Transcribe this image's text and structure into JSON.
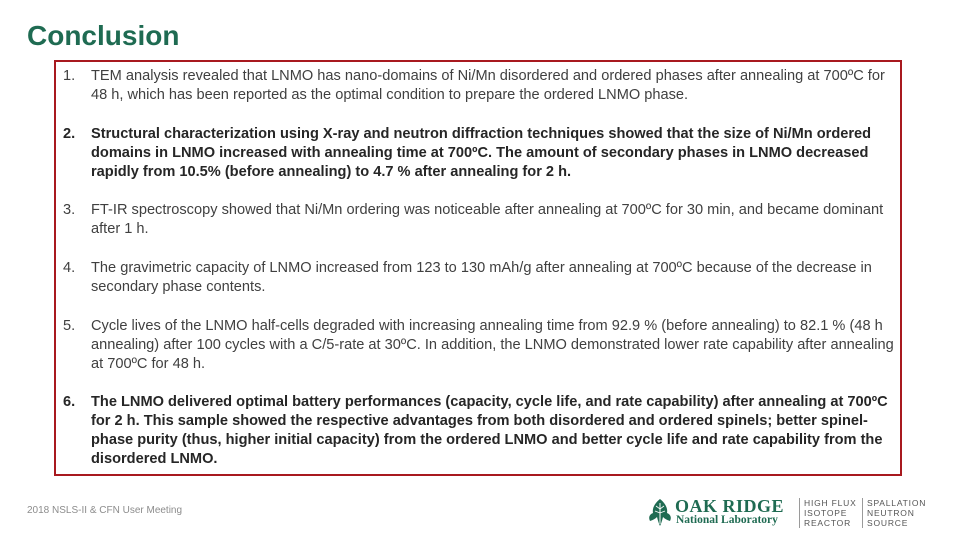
{
  "slide": {
    "title": "Conclusion",
    "footer": "2018 NSLS-II & CFN User Meeting"
  },
  "items": [
    {
      "num": "1.",
      "text": "TEM analysis revealed that LNMO has nano-domains of Ni/Mn disordered and ordered phases after annealing at 700ºC for 48 h, which has been reported as the optimal condition to prepare the ordered LNMO phase.",
      "bold": false
    },
    {
      "num": "2.",
      "text": "Structural characterization using X-ray and neutron diffraction techniques showed that the size of Ni/Mn ordered domains in LNMO increased with annealing time at 700ºC. The amount of secondary phases in LNMO decreased rapidly from 10.5% (before annealing) to 4.7 % after annealing for 2 h.",
      "bold": true
    },
    {
      "num": "3.",
      "text": "FT-IR spectroscopy showed that Ni/Mn ordering was noticeable after annealing at 700ºC for 30 min, and became dominant after 1 h.",
      "bold": false
    },
    {
      "num": "4.",
      "text": "The gravimetric capacity of LNMO increased from 123 to 130 mAh/g after annealing at 700ºC because of the decrease in secondary phase contents.",
      "bold": false
    },
    {
      "num": "5.",
      "text": "Cycle lives of the LNMO half-cells degraded with increasing annealing time from 92.9 % (before annealing) to 82.1 % (48 h annealing) after 100 cycles with a C/5-rate at 30ºC. In addition, the LNMO demonstrated lower rate capability after annealing at 700ºC for 48 h.",
      "bold": false
    },
    {
      "num": "6.",
      "text": "The LNMO delivered optimal battery performances (capacity, cycle life, and rate capability) after annealing at 700ºC for 2 h. This sample showed the respective advantages from both disordered and ordered spinels; better spinel-phase purity (thus, higher initial capacity) from the ordered LNMO and better cycle life and rate capability from the disordered LNMO.",
      "bold": true
    }
  ],
  "logos": {
    "ornl_line1": "OAK RIDGE",
    "ornl_line2": "National Laboratory",
    "hfir": [
      "HIGH FLUX",
      "ISOTOPE",
      "REACTOR"
    ],
    "sns": [
      "SPALLATION",
      "NEUTRON",
      "SOURCE"
    ]
  },
  "colors": {
    "title": "#1f6b52",
    "box_border": "#a8191f",
    "body_text": "#404040"
  }
}
